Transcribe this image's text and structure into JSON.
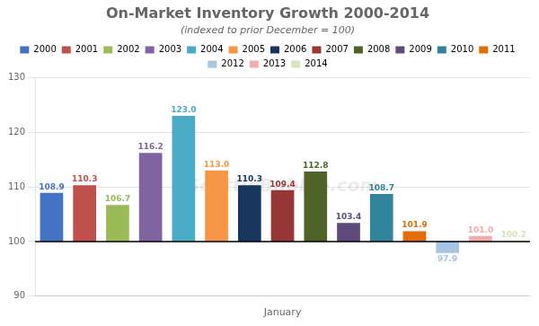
{
  "chart_data": {
    "type": "bar",
    "title": "On-Market Inventory Growth 2000-2014",
    "subtitle": "(indexed to prior December = 100)",
    "xlabel": "January",
    "categories": [
      "2000",
      "2001",
      "2002",
      "2003",
      "2004",
      "2005",
      "2006",
      "2007",
      "2008",
      "2009",
      "2010",
      "2011",
      "2012",
      "2013",
      "2014"
    ],
    "values": [
      108.9,
      110.3,
      106.7,
      116.2,
      123.0,
      113.0,
      110.3,
      109.4,
      112.8,
      103.4,
      108.7,
      101.9,
      97.9,
      101.0,
      100.2
    ],
    "value_labels": [
      "108.9",
      "110.3",
      "106.7",
      "116.2",
      "123.0",
      "113.0",
      "110.3",
      "109.4",
      "112.8",
      "103.4",
      "108.7",
      "101.9",
      "97.9",
      "101.0",
      "100.2"
    ],
    "colors": [
      "#4472C4",
      "#C0504D",
      "#9BBB59",
      "#8064A2",
      "#4BACC6",
      "#F79646",
      "#17375E",
      "#953735",
      "#4F6228",
      "#604A7B",
      "#31849B",
      "#E36C09",
      "#A5C5E5",
      "#F2ACAC",
      "#D8E4BC"
    ],
    "baseline": 100,
    "ylim": [
      90,
      130
    ],
    "yticks": [
      90,
      100,
      110,
      120,
      130
    ],
    "grid": true,
    "legend": "top",
    "data_labels": true,
    "tick_labels": "y",
    "annotation": "SeattleBubble.com"
  }
}
